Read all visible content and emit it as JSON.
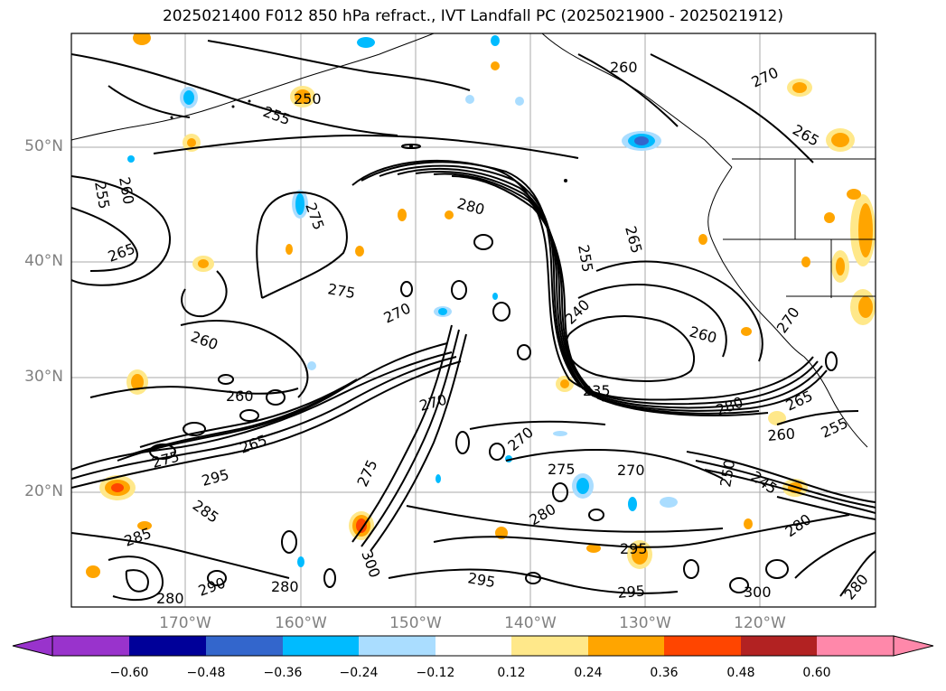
{
  "title": "2025021400 F012 850 hPa refract., IVT Landfall PC (2025021900 - 2025021912)",
  "lat_labels": [
    "50°N",
    "40°N",
    "30°N",
    "20°N"
  ],
  "lon_labels": [
    "170°W",
    "160°W",
    "150°W",
    "140°W",
    "130°W",
    "120°W"
  ],
  "colorbar": {
    "colors": [
      "#9933cc",
      "#000099",
      "#3366cc",
      "#00bbff",
      "#aaddff",
      "#ffffff",
      "#ffe88a",
      "#ffa500",
      "#ff4500",
      "#b22222",
      "#ff88aa"
    ],
    "tick_labels": [
      "−0.60",
      "−0.48",
      "−0.36",
      "−0.24",
      "−0.12",
      "0.12",
      "0.24",
      "0.36",
      "0.48",
      "0.60"
    ]
  },
  "contour_labels": [
    {
      "text": "250"
    },
    {
      "text": "255"
    },
    {
      "text": "260"
    },
    {
      "text": "270"
    },
    {
      "text": "265"
    },
    {
      "text": "255"
    },
    {
      "text": "260"
    },
    {
      "text": "265"
    },
    {
      "text": "275"
    },
    {
      "text": "280"
    },
    {
      "text": "275"
    },
    {
      "text": "270"
    },
    {
      "text": "265"
    },
    {
      "text": "255"
    },
    {
      "text": "240"
    },
    {
      "text": "260"
    },
    {
      "text": "260"
    },
    {
      "text": "260"
    },
    {
      "text": "235"
    },
    {
      "text": "270"
    },
    {
      "text": "280"
    },
    {
      "text": "265"
    },
    {
      "text": "255"
    },
    {
      "text": "260"
    },
    {
      "text": "295"
    },
    {
      "text": "265"
    },
    {
      "text": "270"
    },
    {
      "text": "275"
    },
    {
      "text": "275"
    },
    {
      "text": "270"
    },
    {
      "text": "250"
    },
    {
      "text": "245"
    },
    {
      "text": "285"
    },
    {
      "text": "285"
    },
    {
      "text": "280"
    },
    {
      "text": "290"
    },
    {
      "text": "280"
    },
    {
      "text": "280"
    },
    {
      "text": "300"
    },
    {
      "text": "295"
    },
    {
      "text": "295"
    },
    {
      "text": "295"
    },
    {
      "text": "280"
    },
    {
      "text": "300"
    },
    {
      "text": "280"
    },
    {
      "text": "270"
    },
    {
      "text": "275"
    }
  ]
}
